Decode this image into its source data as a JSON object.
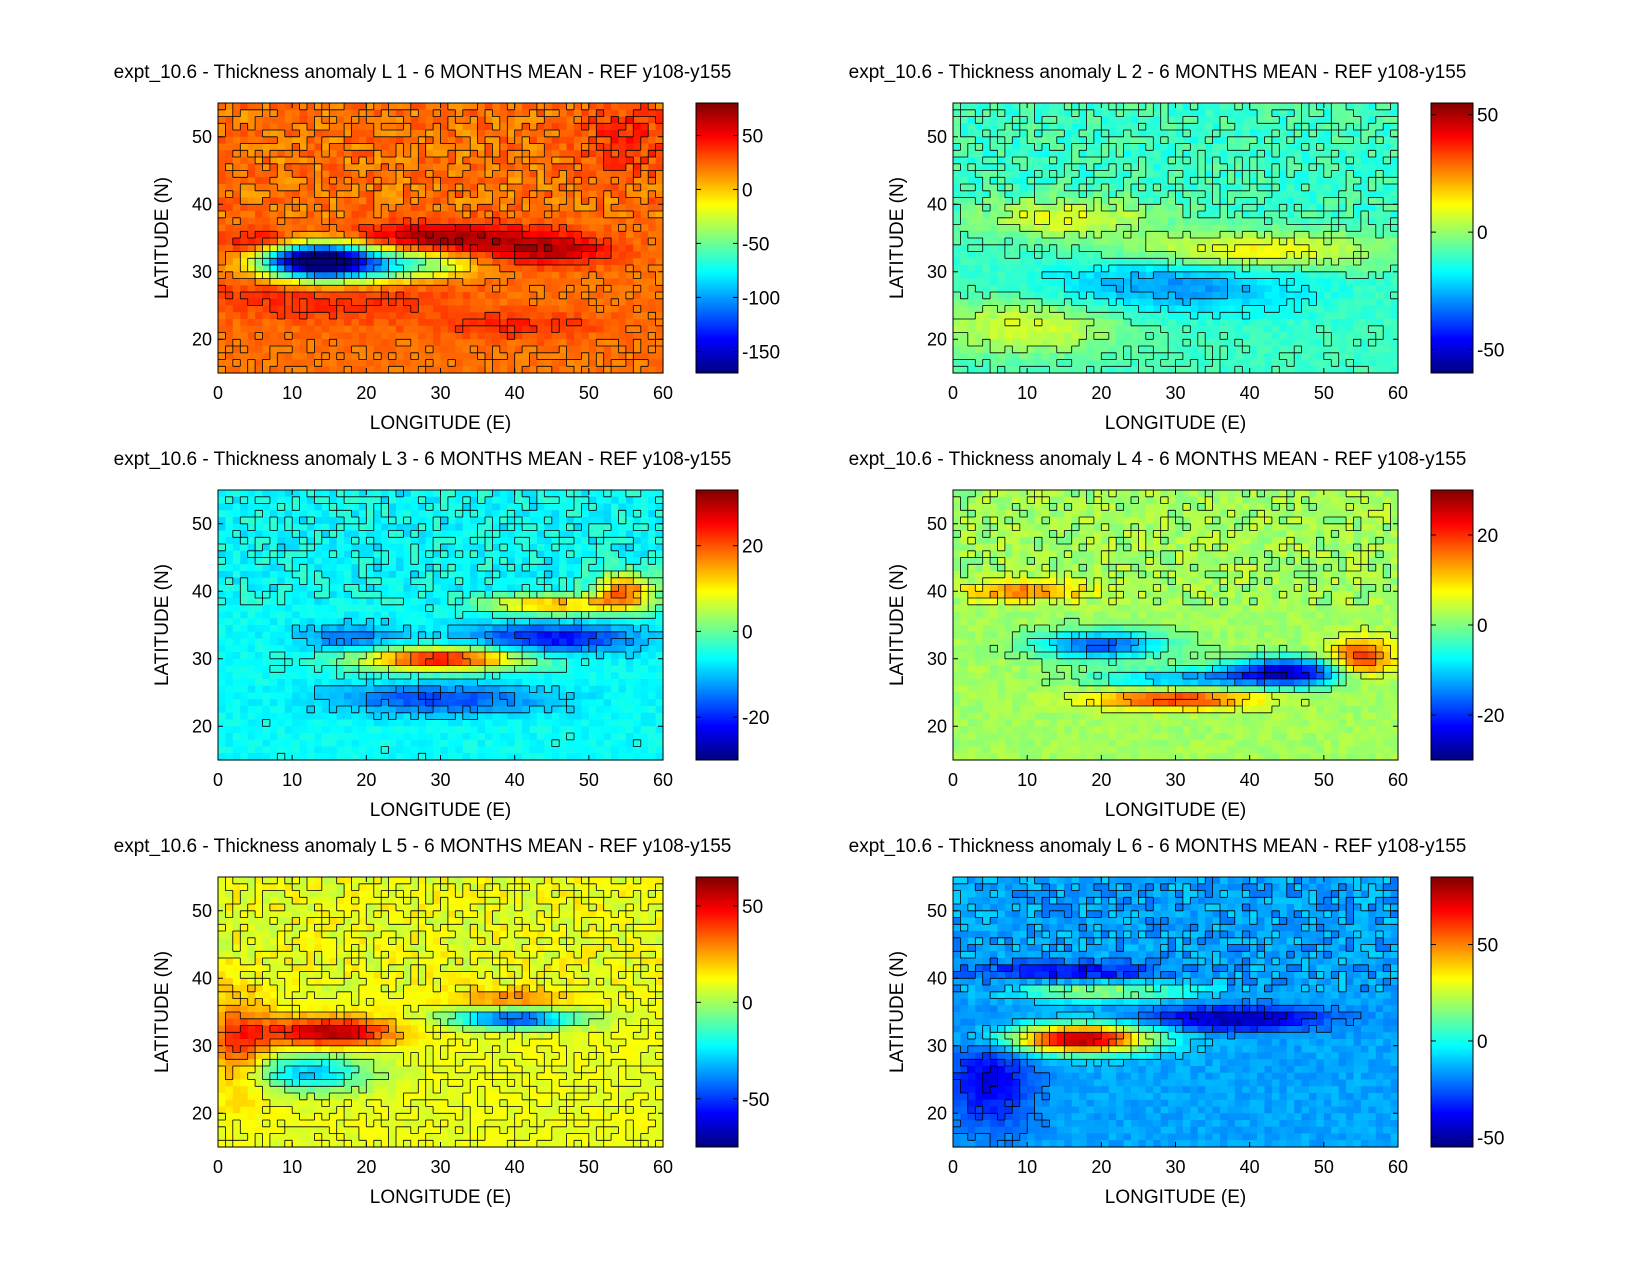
{
  "chart_data": [
    {
      "type": "heatmap",
      "title": "expt_10.6 - Thickness anomaly L 1 - 6 MONTHS MEAN - REF y108-y155",
      "xlabel": "LONGITUDE (E)",
      "ylabel": "LATITUDE (N)",
      "xlim": [
        0,
        60
      ],
      "ylim": [
        15,
        55
      ],
      "xticks": [
        "0",
        "10",
        "20",
        "30",
        "40",
        "50",
        "60"
      ],
      "yticks": [
        "20",
        "30",
        "40",
        "50"
      ],
      "colorbar": {
        "range": [
          -170,
          80
        ],
        "ticks": [
          "50",
          "0",
          "-50",
          "-100",
          "-150"
        ],
        "tick_values": [
          50,
          0,
          -50,
          -100,
          -150
        ]
      },
      "background_value": 20,
      "features": [
        {
          "lon": 12,
          "lat": 32,
          "value": -160,
          "sx": 5,
          "sy": 2
        },
        {
          "lon": 18,
          "lat": 31,
          "value": -90,
          "sx": 6,
          "sy": 2
        },
        {
          "lon": 8,
          "lat": 34,
          "value": 80,
          "sx": 5,
          "sy": 1.5
        },
        {
          "lon": 30,
          "lat": 35,
          "value": 75,
          "sx": 10,
          "sy": 1.5
        },
        {
          "lon": 15,
          "lat": 27,
          "value": 45,
          "sx": 12,
          "sy": 3
        },
        {
          "lon": 28,
          "lat": 31,
          "value": -30,
          "sx": 5,
          "sy": 1.5
        },
        {
          "lon": 45,
          "lat": 33,
          "value": 60,
          "sx": 6,
          "sy": 1.5
        },
        {
          "lon": 55,
          "lat": 50,
          "value": 40,
          "sx": 4,
          "sy": 4
        },
        {
          "lon": 40,
          "lat": 22,
          "value": 40,
          "sx": 8,
          "sy": 1.5
        }
      ]
    },
    {
      "type": "heatmap",
      "title": "expt_10.6 - Thickness anomaly L 2 - 6 MONTHS MEAN - REF y108-y155",
      "xlabel": "LONGITUDE (E)",
      "ylabel": "LATITUDE (N)",
      "xlim": [
        0,
        60
      ],
      "ylim": [
        15,
        55
      ],
      "xticks": [
        "0",
        "10",
        "20",
        "30",
        "40",
        "50",
        "60"
      ],
      "yticks": [
        "20",
        "30",
        "40",
        "50"
      ],
      "colorbar": {
        "range": [
          -60,
          55
        ],
        "ticks": [
          "50",
          "0",
          "-50"
        ],
        "tick_values": [
          50,
          0,
          -50
        ]
      },
      "background_value": -10,
      "features": [
        {
          "lon": 30,
          "lat": 28,
          "value": -30,
          "sx": 12,
          "sy": 3
        },
        {
          "lon": 40,
          "lat": 33,
          "value": 15,
          "sx": 12,
          "sy": 2
        },
        {
          "lon": 15,
          "lat": 38,
          "value": 10,
          "sx": 8,
          "sy": 2
        },
        {
          "lon": 10,
          "lat": 22,
          "value": 8,
          "sx": 10,
          "sy": 3
        }
      ]
    },
    {
      "type": "heatmap",
      "title": "expt_10.6 - Thickness anomaly L 3 - 6 MONTHS MEAN - REF y108-y155",
      "xlabel": "LONGITUDE (E)",
      "ylabel": "LATITUDE (N)",
      "xlim": [
        0,
        60
      ],
      "ylim": [
        15,
        55
      ],
      "xticks": [
        "0",
        "10",
        "20",
        "30",
        "40",
        "50",
        "60"
      ],
      "yticks": [
        "20",
        "30",
        "40",
        "50"
      ],
      "colorbar": {
        "range": [
          -30,
          33
        ],
        "ticks": [
          "20",
          "0",
          "-20"
        ],
        "tick_values": [
          20,
          0,
          -20
        ]
      },
      "background_value": -6,
      "features": [
        {
          "lon": 30,
          "lat": 30,
          "value": 25,
          "sx": 8,
          "sy": 1.2
        },
        {
          "lon": 45,
          "lat": 33,
          "value": -22,
          "sx": 8,
          "sy": 1.5
        },
        {
          "lon": 30,
          "lat": 24,
          "value": -18,
          "sx": 10,
          "sy": 1.5
        },
        {
          "lon": 18,
          "lat": 33,
          "value": -15,
          "sx": 5,
          "sy": 1.5
        },
        {
          "lon": 45,
          "lat": 38,
          "value": 15,
          "sx": 6,
          "sy": 1
        },
        {
          "lon": 55,
          "lat": 40,
          "value": 18,
          "sx": 3,
          "sy": 2
        }
      ]
    },
    {
      "type": "heatmap",
      "title": "expt_10.6 - Thickness anomaly L 4 - 6 MONTHS MEAN - REF y108-y155",
      "xlabel": "LONGITUDE (E)",
      "ylabel": "LATITUDE (N)",
      "xlim": [
        0,
        60
      ],
      "ylim": [
        15,
        55
      ],
      "xticks": [
        "0",
        "10",
        "20",
        "30",
        "40",
        "50",
        "60"
      ],
      "yticks": [
        "20",
        "30",
        "40",
        "50"
      ],
      "colorbar": {
        "range": [
          -30,
          30
        ],
        "ticks": [
          "20",
          "0",
          "-20"
        ],
        "tick_values": [
          20,
          0,
          -20
        ]
      },
      "background_value": 2,
      "features": [
        {
          "lon": 45,
          "lat": 28,
          "value": -25,
          "sx": 6,
          "sy": 1.5
        },
        {
          "lon": 55,
          "lat": 30,
          "value": 22,
          "sx": 3,
          "sy": 2
        },
        {
          "lon": 30,
          "lat": 24,
          "value": 20,
          "sx": 8,
          "sy": 1
        },
        {
          "lon": 20,
          "lat": 32,
          "value": -18,
          "sx": 6,
          "sy": 1.5
        },
        {
          "lon": 10,
          "lat": 40,
          "value": 15,
          "sx": 6,
          "sy": 1
        },
        {
          "lon": 30,
          "lat": 27,
          "value": -12,
          "sx": 8,
          "sy": 1
        }
      ]
    },
    {
      "type": "heatmap",
      "title": "expt_10.6 - Thickness anomaly L 5 - 6 MONTHS MEAN - REF y108-y155",
      "xlabel": "LONGITUDE (E)",
      "ylabel": "LATITUDE (N)",
      "xlim": [
        0,
        60
      ],
      "ylim": [
        15,
        55
      ],
      "xticks": [
        "0",
        "10",
        "20",
        "30",
        "40",
        "50",
        "60"
      ],
      "yticks": [
        "20",
        "30",
        "40",
        "50"
      ],
      "colorbar": {
        "range": [
          -75,
          65
        ],
        "ticks": [
          "50",
          "0",
          "-50"
        ],
        "tick_values": [
          50,
          0,
          -50
        ]
      },
      "background_value": 10,
      "features": [
        {
          "lon": 15,
          "lat": 32,
          "value": 60,
          "sx": 6,
          "sy": 1.5
        },
        {
          "lon": 40,
          "lat": 34,
          "value": -50,
          "sx": 6,
          "sy": 1
        },
        {
          "lon": 12,
          "lat": 26,
          "value": -30,
          "sx": 6,
          "sy": 2
        },
        {
          "lon": 40,
          "lat": 37,
          "value": 30,
          "sx": 6,
          "sy": 1
        },
        {
          "lon": 3,
          "lat": 30,
          "value": 40,
          "sx": 3,
          "sy": 5
        }
      ]
    },
    {
      "type": "heatmap",
      "title": "expt_10.6 - Thickness anomaly L 6 - 6 MONTHS MEAN - REF y108-y155",
      "xlabel": "LONGITUDE (E)",
      "ylabel": "LATITUDE (N)",
      "xlim": [
        0,
        60
      ],
      "ylim": [
        15,
        55
      ],
      "xticks": [
        "0",
        "10",
        "20",
        "30",
        "40",
        "50",
        "60"
      ],
      "yticks": [
        "20",
        "30",
        "40",
        "50"
      ],
      "colorbar": {
        "range": [
          -55,
          85
        ],
        "ticks": [
          "50",
          "0",
          "-50"
        ],
        "tick_values": [
          50,
          0,
          -50
        ]
      },
      "background_value": -15,
      "features": [
        {
          "lon": 17,
          "lat": 31,
          "value": 80,
          "sx": 7,
          "sy": 1.5
        },
        {
          "lon": 38,
          "lat": 34,
          "value": -50,
          "sx": 8,
          "sy": 1.2
        },
        {
          "lon": 15,
          "lat": 41,
          "value": -40,
          "sx": 8,
          "sy": 1
        },
        {
          "lon": 5,
          "lat": 25,
          "value": -40,
          "sx": 4,
          "sy": 5
        },
        {
          "lon": 20,
          "lat": 38,
          "value": 20,
          "sx": 8,
          "sy": 1
        }
      ]
    }
  ]
}
